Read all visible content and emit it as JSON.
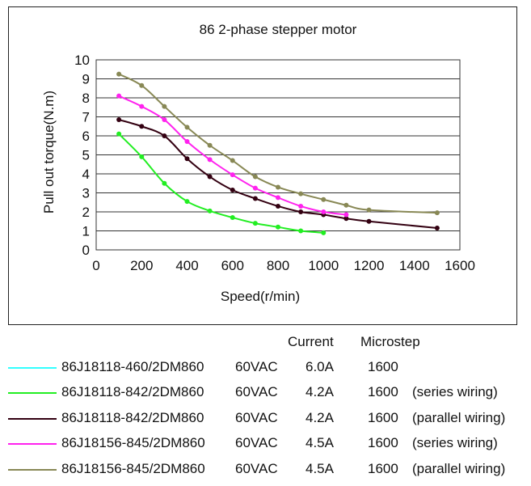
{
  "chart_data": {
    "type": "line",
    "title": "86 2-phase stepper motor",
    "xlabel": "Speed(r/min)",
    "ylabel": "Pull out torque(N.m)",
    "xlim": [
      0,
      1600
    ],
    "ylim": [
      0,
      10
    ],
    "xticks": [
      "0",
      "200",
      "400",
      "600",
      "800",
      "1000",
      "1200",
      "1400",
      "1600"
    ],
    "yticks": [
      "0",
      "1",
      "2",
      "3",
      "4",
      "5",
      "6",
      "7",
      "8",
      "9",
      "10"
    ],
    "grid": "horizontal",
    "series": [
      {
        "name": "86J18118-460/2DM860",
        "voltage": "60VAC",
        "current": "6.0A",
        "microstep": "1600",
        "note": "",
        "color": "#33ffff",
        "x": [],
        "y": []
      },
      {
        "name": "86J18118-842/2DM860",
        "voltage": "60VAC",
        "current": "4.2A",
        "microstep": "1600",
        "note": "(series wiring)",
        "color": "#22ee22",
        "x": [
          100,
          200,
          300,
          400,
          500,
          600,
          700,
          800,
          900,
          1000
        ],
        "y": [
          6.1,
          4.9,
          3.5,
          2.55,
          2.05,
          1.7,
          1.4,
          1.2,
          1.0,
          0.9
        ]
      },
      {
        "name": "86J18118-842/2DM860",
        "voltage": "60VAC",
        "current": "4.2A",
        "microstep": "1600",
        "note": "(parallel wiring)",
        "color": "#330011",
        "x": [
          100,
          200,
          300,
          400,
          500,
          600,
          700,
          800,
          900,
          1000,
          1100,
          1200,
          1500
        ],
        "y": [
          6.85,
          6.5,
          6.0,
          4.8,
          3.85,
          3.15,
          2.7,
          2.3,
          2.0,
          1.85,
          1.65,
          1.5,
          1.15
        ]
      },
      {
        "name": "86J18156-845/2DM860",
        "voltage": "60VAC",
        "current": "4.5A",
        "microstep": "1600",
        "note": "(series wiring)",
        "color": "#ff22ee",
        "x": [
          100,
          200,
          300,
          400,
          500,
          600,
          700,
          800,
          900,
          1000,
          1100
        ],
        "y": [
          8.1,
          7.55,
          6.85,
          5.7,
          4.75,
          3.95,
          3.25,
          2.75,
          2.3,
          2.0,
          1.85
        ]
      },
      {
        "name": "86J18156-845/2DM860",
        "voltage": "60VAC",
        "current": "4.5A",
        "microstep": "1600",
        "note": "(parallel wiring)",
        "color": "#888855",
        "x": [
          100,
          200,
          300,
          400,
          500,
          600,
          700,
          800,
          900,
          1000,
          1100,
          1200,
          1500
        ],
        "y": [
          9.25,
          8.65,
          7.55,
          6.45,
          5.5,
          4.7,
          3.85,
          3.3,
          2.95,
          2.65,
          2.35,
          2.1,
          1.95
        ]
      }
    ]
  },
  "legend": {
    "current_header": "Current",
    "microstep_header": "Microstep"
  }
}
